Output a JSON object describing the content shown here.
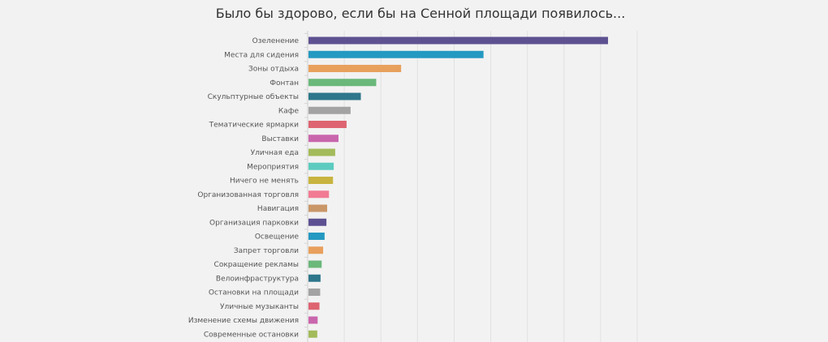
{
  "chart_data": {
    "type": "bar",
    "orientation": "horizontal",
    "title": "Было бы здорово, если бы на Сенной площади появилось...",
    "xlabel": "",
    "ylabel": "",
    "xlim": [
      0,
      900
    ],
    "grid": true,
    "legend": "none",
    "categories": [
      "Озеленение",
      "Места для сидения",
      "Зоны отдыха",
      "Фонтан",
      "Скульптурные объекты",
      "Кафе",
      "Тематические ярмарки",
      "Выставки",
      "Уличная еда",
      "Мероприятия",
      "Ничего не менять",
      "Организованная торговля",
      "Навигация",
      "Организация парковки",
      "Освещение",
      "Запрет торговли",
      "Сокращение рекламы",
      "Велоинфраструктура",
      "Остановки на площади",
      "Уличные музыканты",
      "Изменение схемы движения",
      "Современные остановки"
    ],
    "values": [
      818,
      478,
      253,
      185,
      143,
      115,
      104,
      82,
      73,
      69,
      67,
      56,
      51,
      49,
      44,
      40,
      36,
      33,
      32,
      30,
      25,
      24
    ],
    "colors": [
      "#5e5191",
      "#2499c1",
      "#e8a05c",
      "#6ab87a",
      "#2e768a",
      "#a3a3a3",
      "#dd6470",
      "#c966ad",
      "#a3bb5b",
      "#5ccbbf",
      "#c8b43f",
      "#f17b93",
      "#c99768",
      "#5e5191",
      "#2499c1",
      "#e8a05c",
      "#6ab87a",
      "#2e768a",
      "#a3a3a3",
      "#dd6470",
      "#c966ad",
      "#a3bb5b"
    ]
  }
}
